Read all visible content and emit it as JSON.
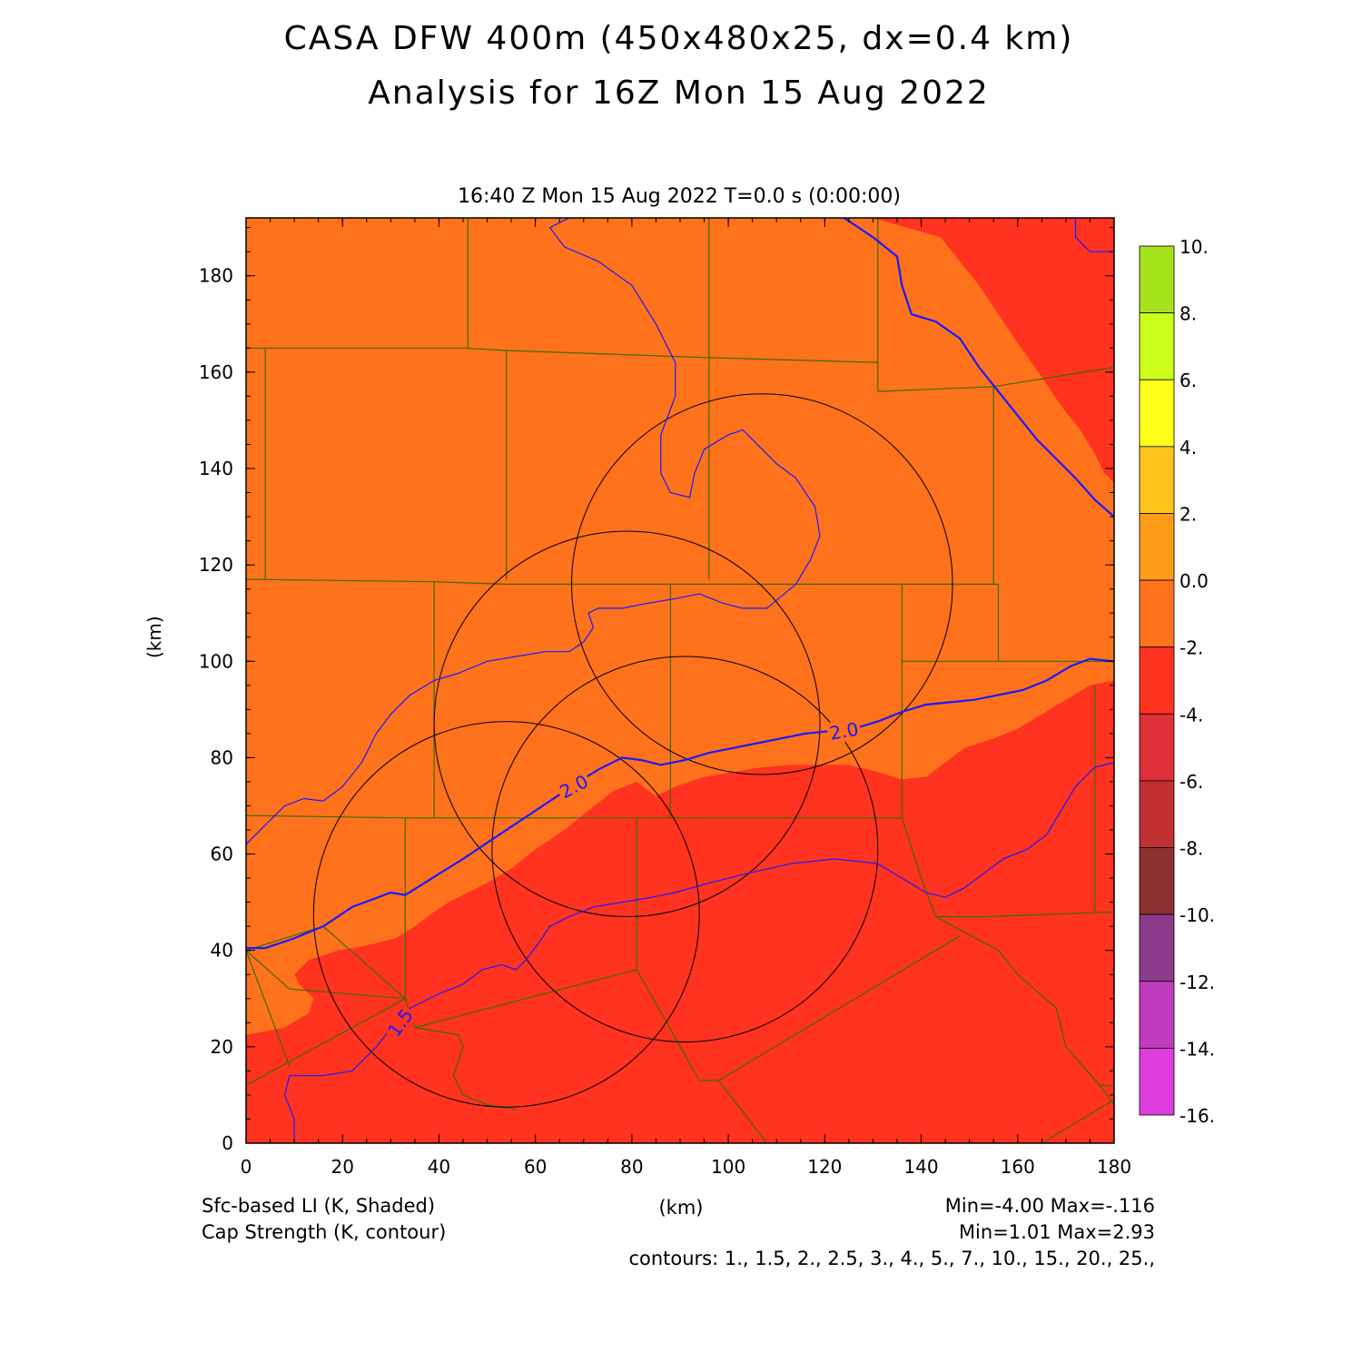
{
  "title_line1": "CASA DFW 400m (450x480x25, dx=0.4 km)",
  "title_line2": "Analysis for 16Z Mon 15 Aug 2022",
  "subtitle": "16:40 Z Mon 15 Aug 2022    T=0.0 s (0:00:00)",
  "ylabel": "(km)",
  "xlabel": "(km)",
  "legend_shaded": "Sfc-based LI (K, Shaded)",
  "legend_contour": "Cap Strength (K, contour)",
  "shaded_stats": "Min=-4.00 Max=-.116",
  "contour_stats": "Min=1.01 Max=2.93",
  "contour_levels_text": "contours: 1., 1.5, 2., 2.5, 3., 4., 5., 7., 10., 15., 20., 25.,",
  "contour_labels": [
    "2.0",
    "2.0",
    "1.5"
  ],
  "colors": {
    "orange_field": "#ff721c",
    "red_field": "#ff331f",
    "contour": "#1a1aff",
    "county": "#3d6b00",
    "radar_ring": "#000000"
  },
  "colorbar": {
    "labels": [
      "10.",
      "8.",
      "6.",
      "4.",
      "2.",
      "0.0",
      "-2.",
      "-4.",
      "-6.",
      "-8.",
      "-10.",
      "-12.",
      "-14.",
      "-16."
    ],
    "colors": [
      "#a6e31c",
      "#ccff1c",
      "#ffff1a",
      "#ffc41c",
      "#ff9c19",
      "#ff721c",
      "#ff331f",
      "#e0303a",
      "#c03030",
      "#8c3030",
      "#8c3a8c",
      "#c03cbf",
      "#dd3ddd"
    ]
  },
  "chart_data": {
    "type": "map",
    "x_axis": {
      "range": [
        0,
        180
      ],
      "ticks": [
        0,
        20,
        40,
        60,
        80,
        100,
        120,
        140,
        160,
        180
      ]
    },
    "y_axis": {
      "range": [
        0,
        192
      ],
      "ticks": [
        0,
        20,
        40,
        60,
        80,
        100,
        120,
        140,
        160,
        180
      ]
    },
    "radar_rings": [
      {
        "center_km": [
          107,
          116
        ],
        "radius_km": 39.5
      },
      {
        "center_km": [
          79,
          87
        ],
        "radius_km": 40
      },
      {
        "center_km": [
          91,
          61
        ],
        "radius_km": 40
      },
      {
        "center_km": [
          54,
          47.5
        ],
        "radius_km": 40
      }
    ],
    "li_region_boundary_km": [
      [
        0,
        22.5
      ],
      [
        3,
        23
      ],
      [
        8,
        24
      ],
      [
        13,
        27
      ],
      [
        14,
        30
      ],
      [
        11,
        33
      ],
      [
        10,
        35
      ],
      [
        13,
        38
      ],
      [
        19,
        40
      ],
      [
        25,
        41
      ],
      [
        31,
        42.5
      ],
      [
        35,
        45
      ],
      [
        39,
        48
      ],
      [
        42,
        50
      ],
      [
        46,
        52
      ],
      [
        50,
        54
      ],
      [
        55,
        57
      ],
      [
        60,
        61
      ],
      [
        66,
        65
      ],
      [
        71,
        69
      ],
      [
        76,
        73
      ],
      [
        81,
        75
      ],
      [
        85,
        72
      ],
      [
        89,
        74
      ],
      [
        95,
        76
      ],
      [
        101,
        77
      ],
      [
        107,
        78
      ],
      [
        113,
        78.5
      ],
      [
        120,
        78.5
      ],
      [
        125,
        78.5
      ],
      [
        131,
        77
      ],
      [
        136,
        75.5
      ],
      [
        141,
        76
      ],
      [
        145,
        79
      ],
      [
        149,
        82
      ],
      [
        155,
        84
      ],
      [
        160,
        86
      ],
      [
        165,
        89
      ],
      [
        170,
        92
      ],
      [
        175,
        95
      ],
      [
        180,
        96
      ],
      [
        180,
        0
      ],
      [
        0,
        0
      ]
    ],
    "li_region_boundary_ne_km": [
      [
        130,
        192
      ],
      [
        137,
        190
      ],
      [
        144,
        188
      ],
      [
        148,
        183
      ],
      [
        152,
        178
      ],
      [
        156,
        172
      ],
      [
        160,
        166
      ],
      [
        165,
        159
      ],
      [
        169,
        153
      ],
      [
        173,
        148
      ],
      [
        176,
        143
      ],
      [
        178,
        139
      ],
      [
        180,
        137
      ],
      [
        180,
        192
      ]
    ],
    "contour_2_0_km": [
      [
        0,
        40.5
      ],
      [
        4,
        40.5
      ],
      [
        10,
        42.5
      ],
      [
        16,
        45
      ],
      [
        22,
        49
      ],
      [
        26,
        50.5
      ],
      [
        30,
        52
      ],
      [
        33,
        51.5
      ],
      [
        37,
        54
      ],
      [
        41,
        56.5
      ],
      [
        45,
        59
      ],
      [
        51,
        63
      ],
      [
        57,
        67
      ],
      [
        63,
        71
      ],
      [
        69,
        75
      ],
      [
        73,
        77.5
      ],
      [
        78,
        80
      ],
      [
        82,
        79.5
      ],
      [
        86,
        78.5
      ],
      [
        91,
        79.5
      ],
      [
        96,
        81
      ],
      [
        101,
        82
      ],
      [
        106,
        83
      ],
      [
        111,
        84
      ],
      [
        116,
        85
      ],
      [
        121,
        85.5
      ],
      [
        126,
        86
      ],
      [
        131,
        87.5
      ],
      [
        136,
        89.5
      ],
      [
        141,
        91
      ],
      [
        146,
        91.5
      ],
      [
        151,
        92
      ],
      [
        156,
        93
      ],
      [
        161,
        94
      ],
      [
        166,
        96
      ],
      [
        171,
        99
      ],
      [
        175,
        100.5
      ],
      [
        180,
        100
      ]
    ],
    "contour_2_0_ne_km": [
      [
        124,
        192
      ],
      [
        130,
        188
      ],
      [
        135,
        184
      ],
      [
        136,
        178
      ],
      [
        138,
        172
      ],
      [
        143,
        170.5
      ],
      [
        148,
        167
      ],
      [
        152,
        161
      ],
      [
        156,
        156
      ],
      [
        160,
        151
      ],
      [
        164,
        146
      ],
      [
        168,
        142
      ],
      [
        172,
        138
      ],
      [
        176,
        133.5
      ],
      [
        180,
        130
      ]
    ],
    "contour_north_km": [
      [
        0,
        62
      ],
      [
        4,
        66
      ],
      [
        8,
        70
      ],
      [
        12,
        71.5
      ],
      [
        16,
        71
      ],
      [
        20,
        74
      ],
      [
        24,
        79
      ],
      [
        27,
        85
      ],
      [
        30,
        89
      ],
      [
        34,
        93
      ],
      [
        39,
        96
      ],
      [
        44,
        97.5
      ],
      [
        50,
        100
      ],
      [
        56,
        101
      ],
      [
        62,
        102
      ],
      [
        67,
        102
      ],
      [
        70,
        104
      ],
      [
        72,
        107
      ],
      [
        71,
        110
      ],
      [
        73,
        111
      ],
      [
        78,
        111
      ],
      [
        83,
        112
      ],
      [
        89,
        113
      ],
      [
        94,
        114
      ],
      [
        99,
        112
      ],
      [
        103,
        111
      ],
      [
        108,
        111
      ],
      [
        114,
        116
      ],
      [
        117,
        121
      ],
      [
        119,
        126
      ],
      [
        118,
        132
      ],
      [
        114,
        138
      ],
      [
        110,
        141
      ],
      [
        106,
        145
      ],
      [
        103,
        148
      ],
      [
        100,
        147
      ],
      [
        95,
        144
      ],
      [
        93,
        139
      ],
      [
        92,
        134
      ],
      [
        88,
        135
      ],
      [
        86,
        139
      ],
      [
        86,
        147
      ],
      [
        89,
        155
      ],
      [
        89,
        162
      ],
      [
        85,
        170
      ],
      [
        80,
        178
      ],
      [
        73,
        183
      ],
      [
        66,
        186
      ],
      [
        63,
        190
      ],
      [
        67,
        192
      ]
    ],
    "contour_south_km": [
      [
        10,
        0
      ],
      [
        10,
        5
      ],
      [
        8,
        10
      ],
      [
        9,
        14
      ],
      [
        16,
        14
      ],
      [
        22,
        15
      ],
      [
        27,
        20
      ],
      [
        31,
        25
      ],
      [
        34,
        28
      ],
      [
        40,
        31
      ],
      [
        45,
        33
      ],
      [
        49,
        36
      ],
      [
        53,
        37
      ],
      [
        56,
        36
      ],
      [
        58,
        38
      ],
      [
        61,
        42
      ],
      [
        63,
        45
      ],
      [
        67,
        47
      ],
      [
        72,
        49
      ],
      [
        78,
        50
      ],
      [
        84,
        51
      ],
      [
        89,
        52
      ],
      [
        96,
        54
      ],
      [
        104,
        56
      ],
      [
        113,
        58
      ],
      [
        122,
        59
      ],
      [
        131,
        58
      ],
      [
        136,
        55
      ],
      [
        141,
        52
      ],
      [
        145,
        51
      ],
      [
        149,
        53
      ],
      [
        153,
        56
      ],
      [
        157,
        59
      ],
      [
        162,
        61
      ],
      [
        166,
        64
      ],
      [
        169,
        69
      ],
      [
        172,
        74
      ],
      [
        176,
        78
      ],
      [
        180,
        79
      ]
    ],
    "contour_ne_corner_km": [
      [
        172,
        192
      ],
      [
        172,
        188
      ],
      [
        175,
        185
      ],
      [
        180,
        185
      ]
    ],
    "counties_km": [
      [
        [
          0,
          68
        ],
        [
          33,
          67.5
        ],
        [
          33,
          30
        ]
      ],
      [
        [
          0,
          117
        ],
        [
          39,
          116.5
        ],
        [
          54,
          116
        ],
        [
          88,
          116
        ],
        [
          112,
          116
        ],
        [
          136,
          116
        ],
        [
          156,
          116
        ]
      ],
      [
        [
          39,
          116.5
        ],
        [
          39,
          67.5
        ]
      ],
      [
        [
          0,
          165
        ],
        [
          45,
          165
        ],
        [
          54,
          164.5
        ],
        [
          54,
          117
        ]
      ],
      [
        [
          4,
          165
        ],
        [
          4,
          117
        ]
      ],
      [
        [
          46,
          192
        ],
        [
          46,
          165
        ]
      ],
      [
        [
          54,
          164.5
        ],
        [
          96,
          163
        ],
        [
          96,
          117
        ]
      ],
      [
        [
          96,
          163
        ],
        [
          96,
          192
        ]
      ],
      [
        [
          96,
          163
        ],
        [
          131,
          162
        ],
        [
          131,
          192
        ]
      ],
      [
        [
          88,
          116
        ],
        [
          88,
          67.5
        ]
      ],
      [
        [
          33,
          67.5
        ],
        [
          136,
          67.5
        ]
      ],
      [
        [
          136,
          116
        ],
        [
          136,
          100
        ],
        [
          156,
          100
        ]
      ],
      [
        [
          136,
          100
        ],
        [
          136,
          67.5
        ]
      ],
      [
        [
          156,
          116
        ],
        [
          156,
          100
        ]
      ],
      [
        [
          156,
          100
        ],
        [
          180,
          100
        ]
      ],
      [
        [
          131,
          162
        ],
        [
          131,
          156
        ],
        [
          155,
          157
        ],
        [
          180,
          161
        ]
      ],
      [
        [
          155,
          157
        ],
        [
          155,
          116
        ]
      ],
      [
        [
          136,
          67.5
        ],
        [
          140,
          55
        ],
        [
          143,
          47
        ],
        [
          153,
          47
        ],
        [
          180,
          48
        ]
      ],
      [
        [
          143,
          47
        ],
        [
          156,
          40
        ],
        [
          160,
          35
        ],
        [
          168,
          28
        ],
        [
          170,
          20
        ],
        [
          177,
          12
        ],
        [
          180,
          8
        ]
      ],
      [
        [
          81,
          67.5
        ],
        [
          81,
          36
        ],
        [
          35,
          24
        ],
        [
          33,
          30
        ]
      ],
      [
        [
          0,
          40
        ],
        [
          9,
          32
        ],
        [
          33,
          30
        ],
        [
          16,
          45
        ],
        [
          0,
          40
        ]
      ],
      [
        [
          0,
          40
        ],
        [
          9,
          16
        ]
      ],
      [
        [
          0,
          12
        ],
        [
          33,
          30
        ]
      ],
      [
        [
          81,
          36
        ],
        [
          94,
          13
        ],
        [
          98,
          13
        ],
        [
          148,
          43
        ]
      ],
      [
        [
          98,
          13
        ],
        [
          108,
          0
        ]
      ],
      [
        [
          177,
          12
        ],
        [
          180,
          12
        ]
      ],
      [
        [
          165,
          0
        ],
        [
          180,
          9
        ]
      ],
      [
        [
          35,
          24
        ],
        [
          44,
          22.5
        ],
        [
          45,
          20
        ],
        [
          43,
          14
        ],
        [
          45,
          10
        ],
        [
          50,
          8
        ],
        [
          56,
          7
        ]
      ],
      [
        [
          176,
          95
        ],
        [
          176,
          48
        ]
      ]
    ],
    "county_outline_full_km": []
  }
}
